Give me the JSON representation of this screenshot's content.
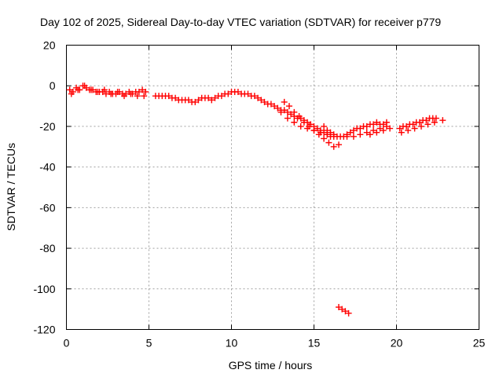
{
  "chart_data": {
    "type": "scatter",
    "title": "Day 102 of 2025, Sidereal Day-to-day VTEC variation (SDTVAR) for receiver p779",
    "xlabel": "GPS time / hours",
    "ylabel": "SDTVAR / TECUs",
    "xlim": [
      0,
      25
    ],
    "ylim": [
      -120,
      20
    ],
    "xticks": [
      0,
      5,
      10,
      15,
      20,
      25
    ],
    "yticks": [
      20,
      0,
      -20,
      -40,
      -60,
      -80,
      -100,
      -120
    ],
    "grid": true,
    "marker": "plus",
    "series": [
      {
        "name": "SDTVAR",
        "color": "#ff0000",
        "x": [
          0.2,
          0.4,
          0.6,
          0.8,
          1.0,
          1.2,
          1.4,
          1.6,
          1.8,
          2.0,
          2.2,
          2.4,
          2.6,
          2.8,
          3.0,
          3.2,
          3.4,
          3.6,
          3.8,
          4.0,
          4.2,
          4.4,
          4.6,
          4.8,
          0.3,
          0.7,
          1.1,
          1.5,
          1.9,
          2.3,
          2.7,
          3.1,
          3.5,
          3.9,
          4.3,
          4.7,
          5.4,
          5.6,
          5.8,
          6.0,
          6.2,
          6.4,
          6.6,
          6.8,
          7.0,
          7.2,
          7.4,
          7.6,
          7.8,
          8.0,
          8.2,
          8.4,
          8.6,
          8.8,
          9.0,
          9.2,
          9.4,
          9.6,
          9.8,
          10.0,
          10.2,
          10.4,
          10.6,
          10.8,
          11.0,
          11.2,
          11.4,
          11.6,
          11.8,
          12.0,
          12.2,
          12.4,
          12.6,
          12.8,
          13.0,
          13.2,
          13.4,
          13.6,
          13.8,
          14.0,
          14.2,
          14.4,
          14.6,
          14.8,
          15.0,
          15.2,
          15.4,
          15.6,
          15.8,
          16.0,
          13.2,
          13.5,
          13.8,
          14.1,
          14.4,
          14.7,
          15.0,
          15.3,
          15.6,
          15.9,
          16.2,
          16.5,
          13.0,
          13.4,
          13.8,
          14.2,
          14.6,
          15.0,
          15.4,
          15.8,
          16.2,
          15.6,
          15.8,
          16.0,
          16.2,
          16.4,
          16.6,
          16.8,
          17.0,
          17.2,
          17.4,
          17.6,
          17.8,
          18.0,
          18.2,
          18.4,
          18.6,
          18.8,
          19.0,
          19.2,
          19.4,
          17.0,
          17.4,
          17.8,
          18.2,
          18.6,
          19.0,
          19.4,
          18.4,
          18.8,
          19.2,
          19.6,
          20.2,
          20.4,
          20.6,
          20.8,
          21.0,
          21.2,
          21.4,
          21.6,
          21.8,
          22.0,
          22.2,
          22.4,
          20.3,
          20.7,
          21.1,
          21.5,
          21.9,
          22.3,
          22.8,
          16.5,
          16.7,
          16.9,
          17.1
        ],
        "y": [
          -2,
          -3,
          -1,
          -2,
          0,
          -1,
          -2,
          -2,
          -3,
          -3,
          -3,
          -4,
          -3,
          -4,
          -4,
          -3,
          -4,
          -4,
          -3,
          -4,
          -3,
          -3,
          -2,
          -3,
          -4,
          -2,
          0,
          -2,
          -3,
          -2,
          -4,
          -3,
          -5,
          -4,
          -5,
          -5,
          -5,
          -5,
          -5,
          -5,
          -5,
          -6,
          -6,
          -7,
          -7,
          -7,
          -7,
          -8,
          -8,
          -7,
          -6,
          -6,
          -6,
          -7,
          -6,
          -5,
          -5,
          -4,
          -4,
          -3,
          -3,
          -3,
          -4,
          -4,
          -4,
          -5,
          -5,
          -6,
          -7,
          -8,
          -9,
          -9,
          -10,
          -11,
          -12,
          -12,
          -13,
          -14,
          -15,
          -16,
          -16,
          -17,
          -18,
          -19,
          -20,
          -21,
          -22,
          -23,
          -24,
          -25,
          -8,
          -10,
          -13,
          -15,
          -18,
          -20,
          -22,
          -24,
          -26,
          -28,
          -30,
          -29,
          -13,
          -16,
          -18,
          -20,
          -21,
          -22,
          -23,
          -24,
          -25,
          -20,
          -22,
          -23,
          -24,
          -25,
          -25,
          -25,
          -24,
          -23,
          -22,
          -21,
          -21,
          -20,
          -20,
          -19,
          -19,
          -18,
          -19,
          -19,
          -18,
          -25,
          -25,
          -24,
          -23,
          -22,
          -21,
          -20,
          -24,
          -23,
          -22,
          -21,
          -21,
          -20,
          -20,
          -19,
          -19,
          -18,
          -18,
          -17,
          -17,
          -16,
          -16,
          -16,
          -23,
          -22,
          -21,
          -20,
          -19,
          -18,
          -17,
          -109,
          -110,
          -111,
          -112
        ]
      }
    ]
  }
}
